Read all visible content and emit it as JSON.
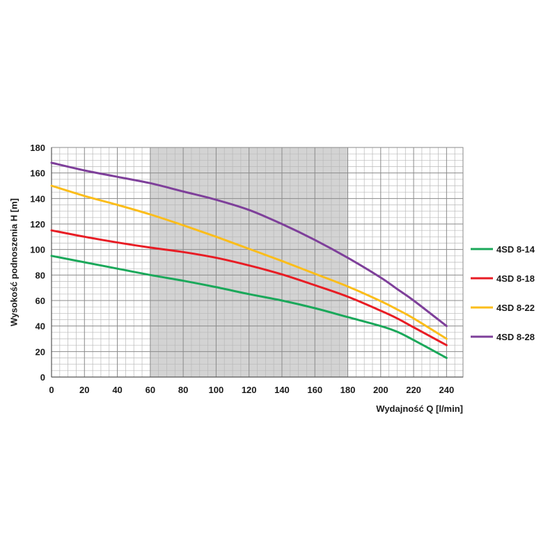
{
  "chart_data": {
    "type": "line",
    "title": "",
    "xlabel": "Wydajność Q [l/min]",
    "ylabel": "Wysokość podnoszenia H [m]",
    "xlim": [
      0,
      250
    ],
    "ylim": [
      0,
      180
    ],
    "x_ticks": [
      0,
      20,
      40,
      60,
      80,
      100,
      120,
      140,
      160,
      180,
      200,
      220,
      240
    ],
    "y_ticks": [
      0,
      20,
      40,
      60,
      80,
      100,
      120,
      140,
      160,
      180
    ],
    "grid": true,
    "shaded_range_x": [
      60,
      180
    ],
    "shaded_color": "#d3d3d3",
    "legend_position": "right",
    "x": [
      0,
      20,
      40,
      60,
      80,
      100,
      120,
      140,
      160,
      180,
      200,
      210,
      220,
      240
    ],
    "series": [
      {
        "name": "4SD 8-14",
        "color": "#1aa85a",
        "values": [
          95,
          90,
          85,
          80,
          75.5,
          70.5,
          65,
          60,
          54,
          47,
          40,
          35.5,
          29,
          15
        ]
      },
      {
        "name": "4SD 8-18",
        "color": "#e81c24",
        "values": [
          115,
          110,
          105.5,
          101.5,
          98,
          93.5,
          87.5,
          80.5,
          72,
          63,
          52,
          46,
          39,
          25
        ]
      },
      {
        "name": "4SD 8-22",
        "color": "#fbbd1a",
        "values": [
          150,
          142,
          135,
          127.5,
          119,
          110,
          100.5,
          91,
          81,
          71,
          59.5,
          53,
          46,
          30
        ]
      },
      {
        "name": "4SD 8-28",
        "color": "#7e3f9a",
        "values": [
          168,
          162,
          157,
          152,
          145.5,
          139,
          131,
          120,
          107.5,
          93.5,
          78,
          69,
          60,
          40
        ]
      }
    ]
  }
}
